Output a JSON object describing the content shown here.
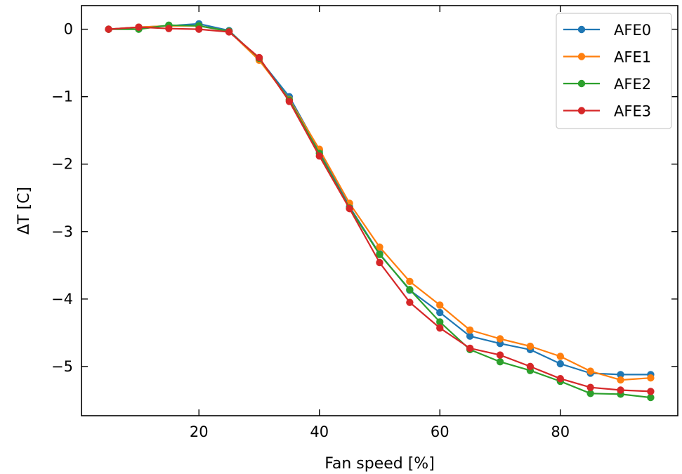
{
  "chart_data": {
    "type": "line",
    "title": "",
    "xlabel": "Fan speed [%]",
    "ylabel": "ΔT [C]",
    "xlim": [
      0.5,
      99.5
    ],
    "ylim": [
      -5.73,
      0.35
    ],
    "xticks": [
      20,
      40,
      60,
      80
    ],
    "xtick_labels": [
      "20",
      "40",
      "60",
      "80"
    ],
    "yticks": [
      0,
      -1,
      -2,
      -3,
      -4,
      -5
    ],
    "ytick_labels": [
      "0",
      "−1",
      "−2",
      "−3",
      "−4",
      "−5"
    ],
    "grid": false,
    "legend_position": "top-right",
    "x": [
      5,
      10,
      15,
      20,
      25,
      30,
      35,
      40,
      45,
      50,
      55,
      60,
      65,
      70,
      75,
      80,
      85,
      90,
      95
    ],
    "series": [
      {
        "name": "AFE0",
        "color": "#1f77b4",
        "values": [
          0.0,
          0.03,
          0.05,
          0.08,
          -0.02,
          -0.44,
          -1.0,
          -1.8,
          -2.63,
          -3.33,
          -3.87,
          -4.2,
          -4.55,
          -4.66,
          -4.75,
          -4.96,
          -5.1,
          -5.12,
          -5.12
        ]
      },
      {
        "name": "AFE1",
        "color": "#ff7f0e",
        "values": [
          0.0,
          0.03,
          0.05,
          0.05,
          -0.03,
          -0.46,
          -1.04,
          -1.78,
          -2.58,
          -3.23,
          -3.74,
          -4.09,
          -4.46,
          -4.59,
          -4.7,
          -4.85,
          -5.07,
          -5.2,
          -5.17
        ]
      },
      {
        "name": "AFE2",
        "color": "#2ca02c",
        "values": [
          0.0,
          0.0,
          0.06,
          0.05,
          -0.03,
          -0.43,
          -1.05,
          -1.84,
          -2.65,
          -3.34,
          -3.86,
          -4.34,
          -4.75,
          -4.93,
          -5.06,
          -5.22,
          -5.4,
          -5.41,
          -5.46
        ]
      },
      {
        "name": "AFE3",
        "color": "#d62728",
        "values": [
          0.0,
          0.03,
          0.01,
          0.0,
          -0.04,
          -0.42,
          -1.07,
          -1.88,
          -2.66,
          -3.46,
          -4.05,
          -4.43,
          -4.73,
          -4.83,
          -5.0,
          -5.18,
          -5.31,
          -5.35,
          -5.37
        ]
      }
    ]
  }
}
